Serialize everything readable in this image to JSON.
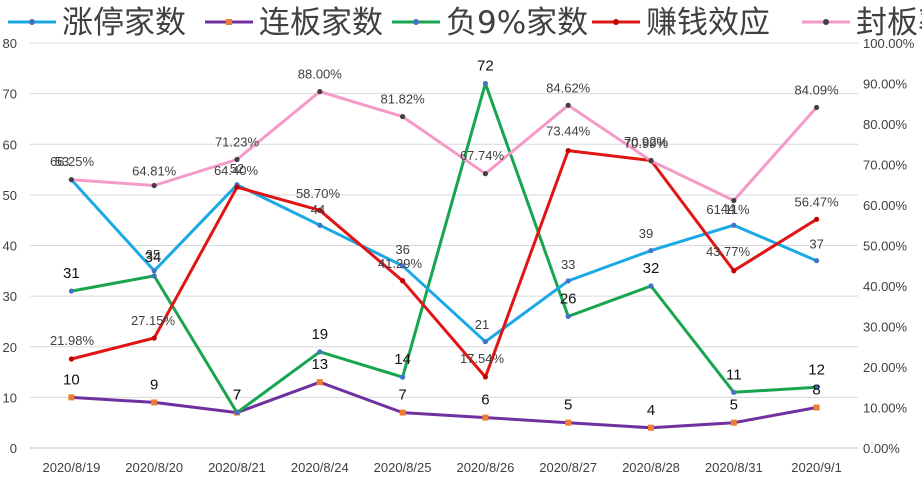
{
  "chart_data": {
    "type": "line",
    "categories": [
      "2020/8/19",
      "2020/8/20",
      "2020/8/21",
      "2020/8/24",
      "2020/8/25",
      "2020/8/26",
      "2020/8/27",
      "2020/8/28",
      "2020/8/31",
      "2020/9/1"
    ],
    "left_axis": {
      "ylim": [
        0,
        80
      ],
      "ticks": [
        "0",
        "10",
        "20",
        "30",
        "40",
        "50",
        "60",
        "70",
        "80"
      ]
    },
    "right_axis": {
      "ylim": [
        0,
        1
      ],
      "ticks": [
        "0.00%",
        "10.00%",
        "20.00%",
        "30.00%",
        "40.00%",
        "50.00%",
        "60.00%",
        "70.00%",
        "80.00%",
        "90.00%",
        "100.00%"
      ]
    },
    "grid": true,
    "legend_position": "top",
    "series": [
      {
        "name": "涨停家数",
        "axis": "left",
        "color": "#1AA9E6",
        "marker_color": "#4472C4",
        "values": [
          53,
          35,
          52,
          44,
          36,
          21,
          33,
          39,
          44,
          37
        ],
        "labels": [
          "53",
          "35",
          "52",
          "44",
          "36",
          "21",
          "33",
          "39",
          "44",
          "37"
        ]
      },
      {
        "name": "连板家数",
        "axis": "left",
        "color": "#7030A0",
        "marker_color": "#ED7D31",
        "values": [
          10,
          9,
          7,
          13,
          7,
          6,
          5,
          4,
          5,
          8
        ],
        "labels": [
          "10",
          "9",
          "7",
          "13",
          "7",
          "6",
          "5",
          "4",
          "5",
          "8"
        ]
      },
      {
        "name": "负9%家数",
        "axis": "left",
        "color": "#18A550",
        "marker_color": "#4472C4",
        "values": [
          31,
          34,
          7,
          19,
          14,
          72,
          26,
          32,
          11,
          12
        ],
        "labels": [
          "31",
          "34",
          "7",
          "19",
          "14",
          "72",
          "26",
          "32",
          "11",
          "12"
        ]
      },
      {
        "name": "赚钱效应",
        "axis": "right",
        "color": "#E01515",
        "marker_color": "#C00000",
        "values": [
          0.2198,
          0.2715,
          0.644,
          0.587,
          0.4129,
          0.1754,
          0.7344,
          0.7099,
          0.4377,
          0.5647
        ],
        "labels": [
          "21.98%",
          "27.15%",
          "64.40%",
          "58.70%",
          "41.29%",
          "17.54%",
          "73.44%",
          "70.99%",
          "43.77%",
          "56.47%"
        ]
      },
      {
        "name": "封板率",
        "axis": "right",
        "color": "#F49AC8",
        "marker_color": "#404040",
        "values": [
          0.6625,
          0.6481,
          0.7123,
          0.88,
          0.8182,
          0.6774,
          0.8462,
          0.7092,
          0.6111,
          0.8409
        ],
        "labels": [
          "66.25%",
          "64.81%",
          "71.23%",
          "88.00%",
          "81.82%",
          "67.74%",
          "84.62%",
          "70.92%",
          "61.11%",
          "84.09%"
        ]
      }
    ]
  }
}
